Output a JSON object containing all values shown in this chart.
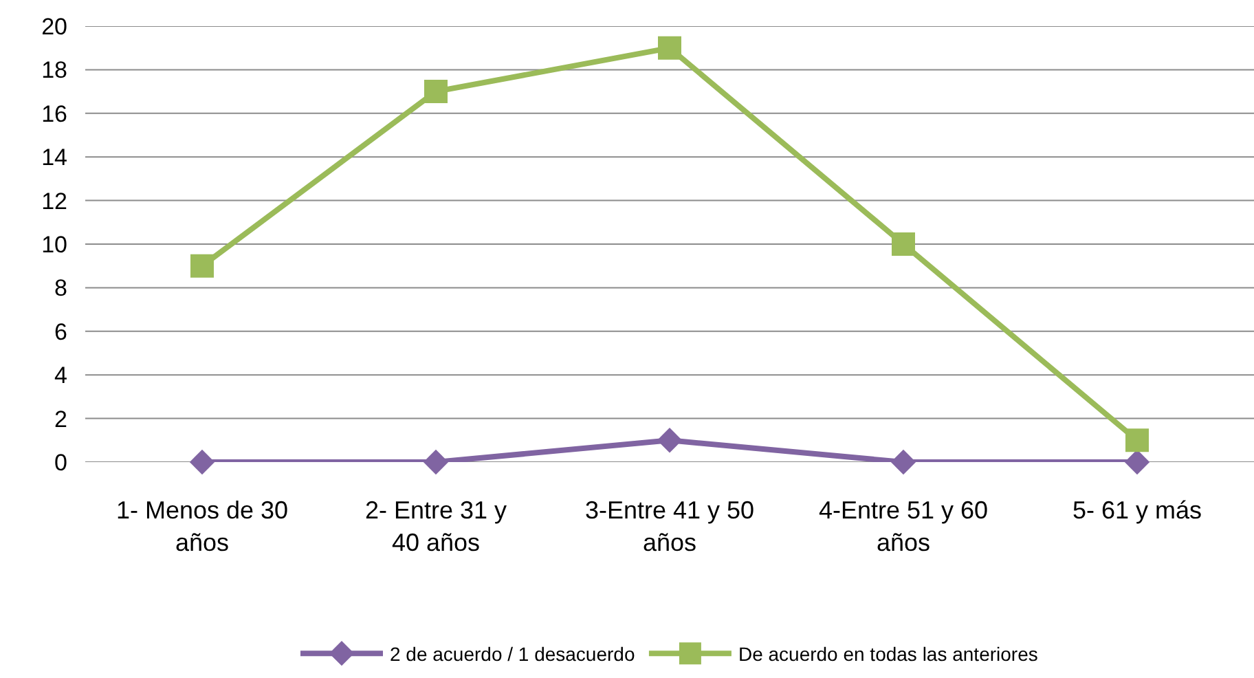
{
  "chart_data": {
    "type": "line",
    "categories": [
      "1- Menos de 30 años",
      "2- Entre 31 y 40 años",
      "3-Entre 41 y 50 años",
      "4-Entre 51 y 60 años",
      "5- 61 y más"
    ],
    "series": [
      {
        "name": "2 de acuerdo / 1 desacuerdo",
        "color": "#8064a2",
        "marker": "diamond",
        "values": [
          0,
          0,
          1,
          0,
          0
        ]
      },
      {
        "name": "De acuerdo en todas las anteriores",
        "color": "#9bbb59",
        "marker": "square",
        "values": [
          9,
          17,
          19,
          10,
          1
        ]
      }
    ],
    "ylim": [
      0,
      20
    ],
    "yticks": [
      0,
      2,
      4,
      6,
      8,
      10,
      12,
      14,
      16,
      18,
      20
    ],
    "grid": "y",
    "legend": "bottom",
    "line_style": "solid"
  }
}
